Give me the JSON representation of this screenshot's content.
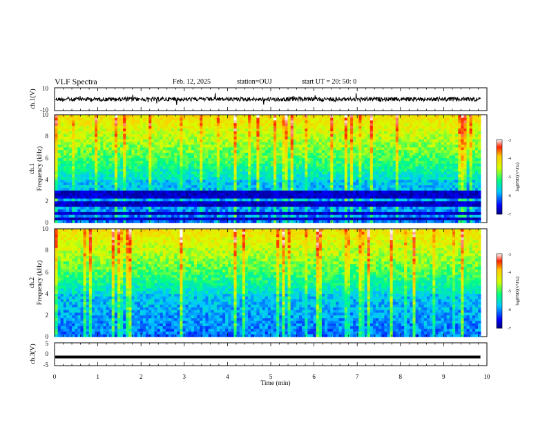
{
  "header": {
    "title": "VLF Spectra",
    "date": "Feb. 12, 2025",
    "station": "station=OUJ",
    "start_ut": "start UT =  20: 50: 0"
  },
  "chart_data": [
    {
      "type": "line",
      "panel": "ch1-waveform",
      "ylabel": "ch.1(V)",
      "ylim": [
        -10,
        10
      ],
      "yticks": [
        "10",
        "-10"
      ],
      "xlim": [
        0,
        10
      ],
      "baseline": 0,
      "colors": {
        "line": "#000000"
      }
    },
    {
      "type": "heatmap",
      "panel": "ch1-spectrogram",
      "ylabel": "ch.1\nFrequency (kHz)",
      "ylim": [
        0,
        10
      ],
      "yticks": [
        "0",
        "2",
        "4",
        "6",
        "8",
        "10"
      ],
      "xlim": [
        0,
        9.85
      ],
      "colorbar": {
        "label": "log(PSD)(V²/Hz)",
        "range": [
          -7,
          -3
        ],
        "ticks": [
          "-3",
          "-4",
          "-5",
          "-6",
          "-7"
        ]
      },
      "dark_band_khz": [
        [
          0.2,
          0.5
        ],
        [
          0.8,
          1.0
        ],
        [
          1.5,
          1.9
        ],
        [
          2.2,
          2.9
        ]
      ]
    },
    {
      "type": "heatmap",
      "panel": "ch2-spectrogram",
      "ylabel": "ch.2\nFrequency (kHz)",
      "ylim": [
        0,
        10
      ],
      "yticks": [
        "0",
        "2",
        "4",
        "6",
        "8",
        "10"
      ],
      "xlim": [
        0,
        9.85
      ],
      "colorbar": {
        "label": "log(PSD)(V²/Hz)",
        "range": [
          -7,
          -3
        ],
        "ticks": [
          "-3",
          "-4",
          "-5",
          "-6",
          "-7"
        ]
      }
    },
    {
      "type": "line",
      "panel": "ch3-waveform",
      "ylabel": "ch.3(V)",
      "ylim": [
        -5,
        5
      ],
      "yticks": [
        "5",
        "0",
        "-5"
      ],
      "xlim": [
        0,
        10
      ],
      "baseline": -1.2,
      "colors": {
        "line": "#000000"
      }
    }
  ],
  "xaxis": {
    "label": "Time (min)",
    "ticks": [
      "0",
      "1",
      "2",
      "3",
      "4",
      "5",
      "6",
      "7",
      "8",
      "9",
      "10"
    ]
  }
}
